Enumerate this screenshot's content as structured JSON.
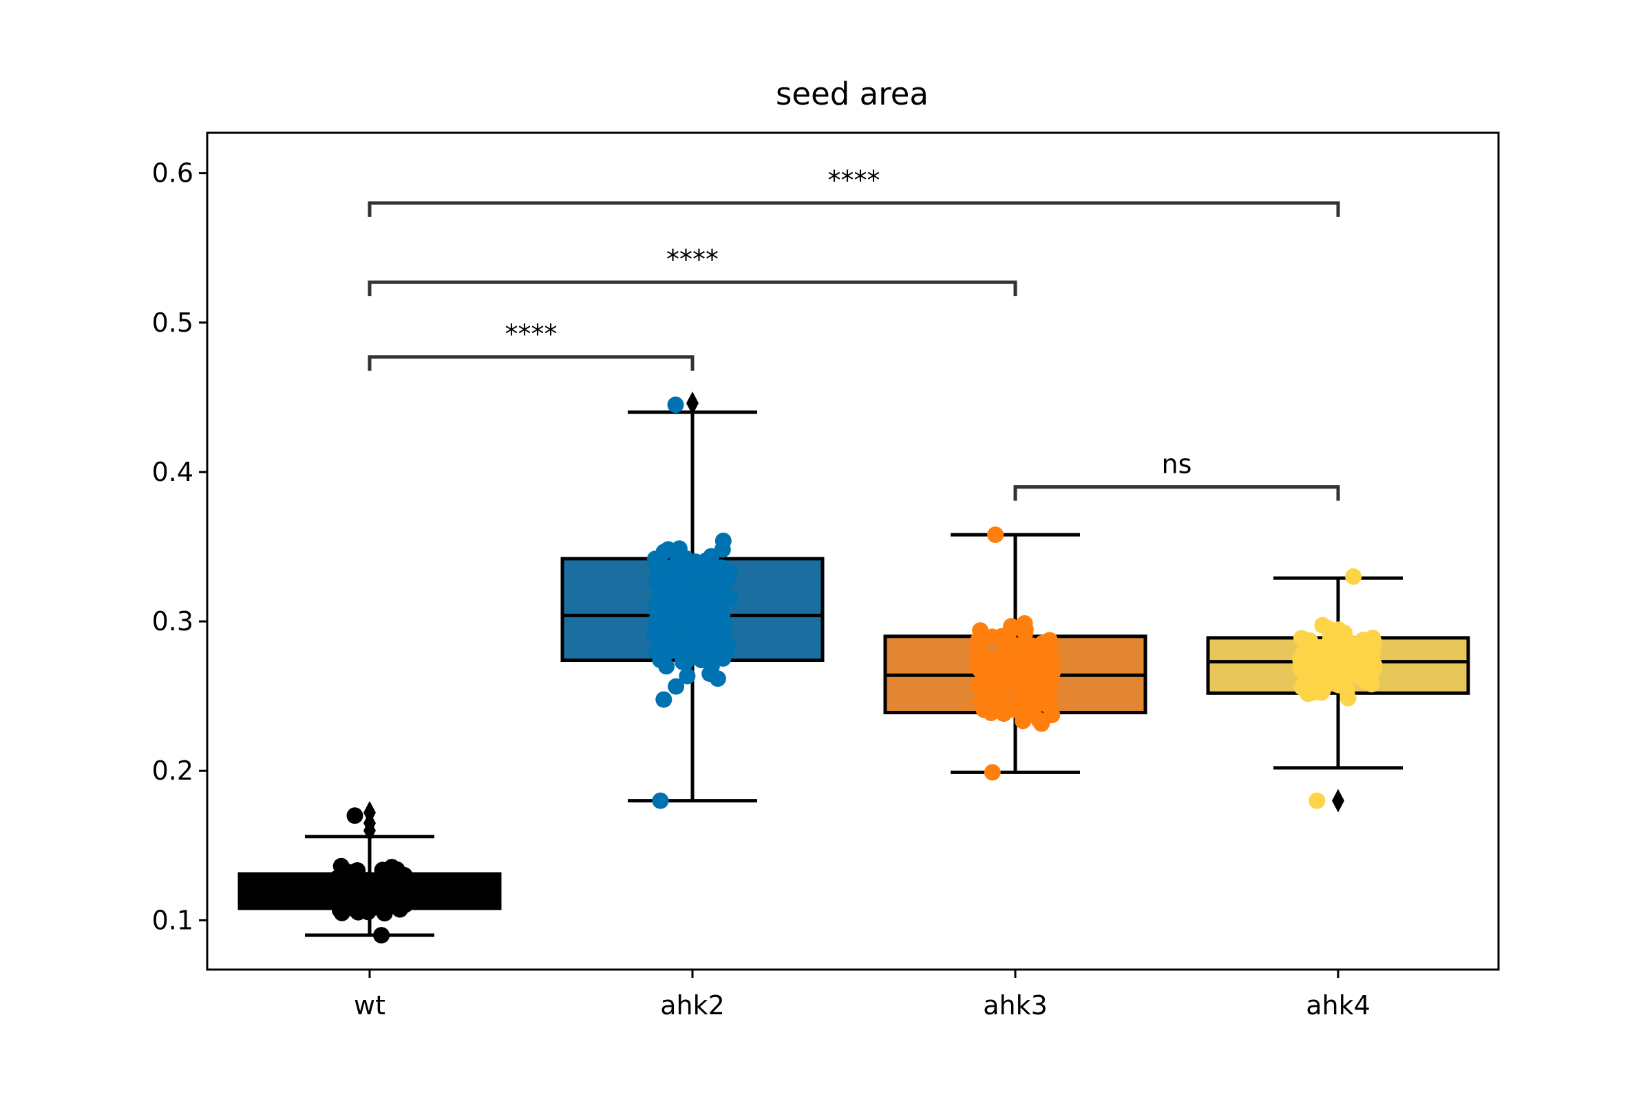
{
  "chart_data": {
    "type": "box",
    "title": "seed area",
    "xlabel": "",
    "ylabel": "",
    "ylim": [
      0.067,
      0.627
    ],
    "yticks": [
      0.1,
      0.2,
      0.3,
      0.4,
      0.5,
      0.6
    ],
    "ytick_labels": [
      "0.1",
      "0.2",
      "0.3",
      "0.4",
      "0.5",
      "0.6"
    ],
    "categories": [
      "wt",
      "ahk2",
      "ahk3",
      "ahk4"
    ],
    "grid": false,
    "boxes": [
      {
        "category": "wt",
        "min": 0.09,
        "q1": 0.108,
        "median": 0.12,
        "q3": 0.131,
        "max": 0.156,
        "box_color": "#000000",
        "point_color": "#000000",
        "outliers": [
          0.172,
          0.165,
          0.16
        ],
        "points_min": 0.09,
        "points_max": 0.17,
        "n_points": 150
      },
      {
        "category": "ahk2",
        "min": 0.18,
        "q1": 0.274,
        "median": 0.304,
        "q3": 0.342,
        "max": 0.44,
        "box_color": "#1a6ea0",
        "point_color": "#0072b2",
        "outliers": [
          0.446
        ],
        "points_min": 0.18,
        "points_max": 0.445,
        "n_points": 180
      },
      {
        "category": "ahk3",
        "min": 0.199,
        "q1": 0.239,
        "median": 0.264,
        "q3": 0.29,
        "max": 0.358,
        "box_color": "#e38632",
        "point_color": "#ff7f0e",
        "outliers": [],
        "points_min": 0.199,
        "points_max": 0.358,
        "n_points": 150
      },
      {
        "category": "ahk4",
        "min": 0.202,
        "q1": 0.252,
        "median": 0.273,
        "q3": 0.289,
        "max": 0.329,
        "box_color": "#e8c75a",
        "point_color": "#fdd447",
        "outliers": [
          0.18
        ],
        "points_min": 0.18,
        "points_max": 0.33,
        "n_points": 150
      }
    ],
    "annotations": [
      {
        "from": "wt",
        "to": "ahk2",
        "label": "****"
      },
      {
        "from": "wt",
        "to": "ahk3",
        "label": "****"
      },
      {
        "from": "wt",
        "to": "ahk4",
        "label": "****"
      },
      {
        "from": "ahk3",
        "to": "ahk4",
        "label": "ns"
      }
    ]
  }
}
